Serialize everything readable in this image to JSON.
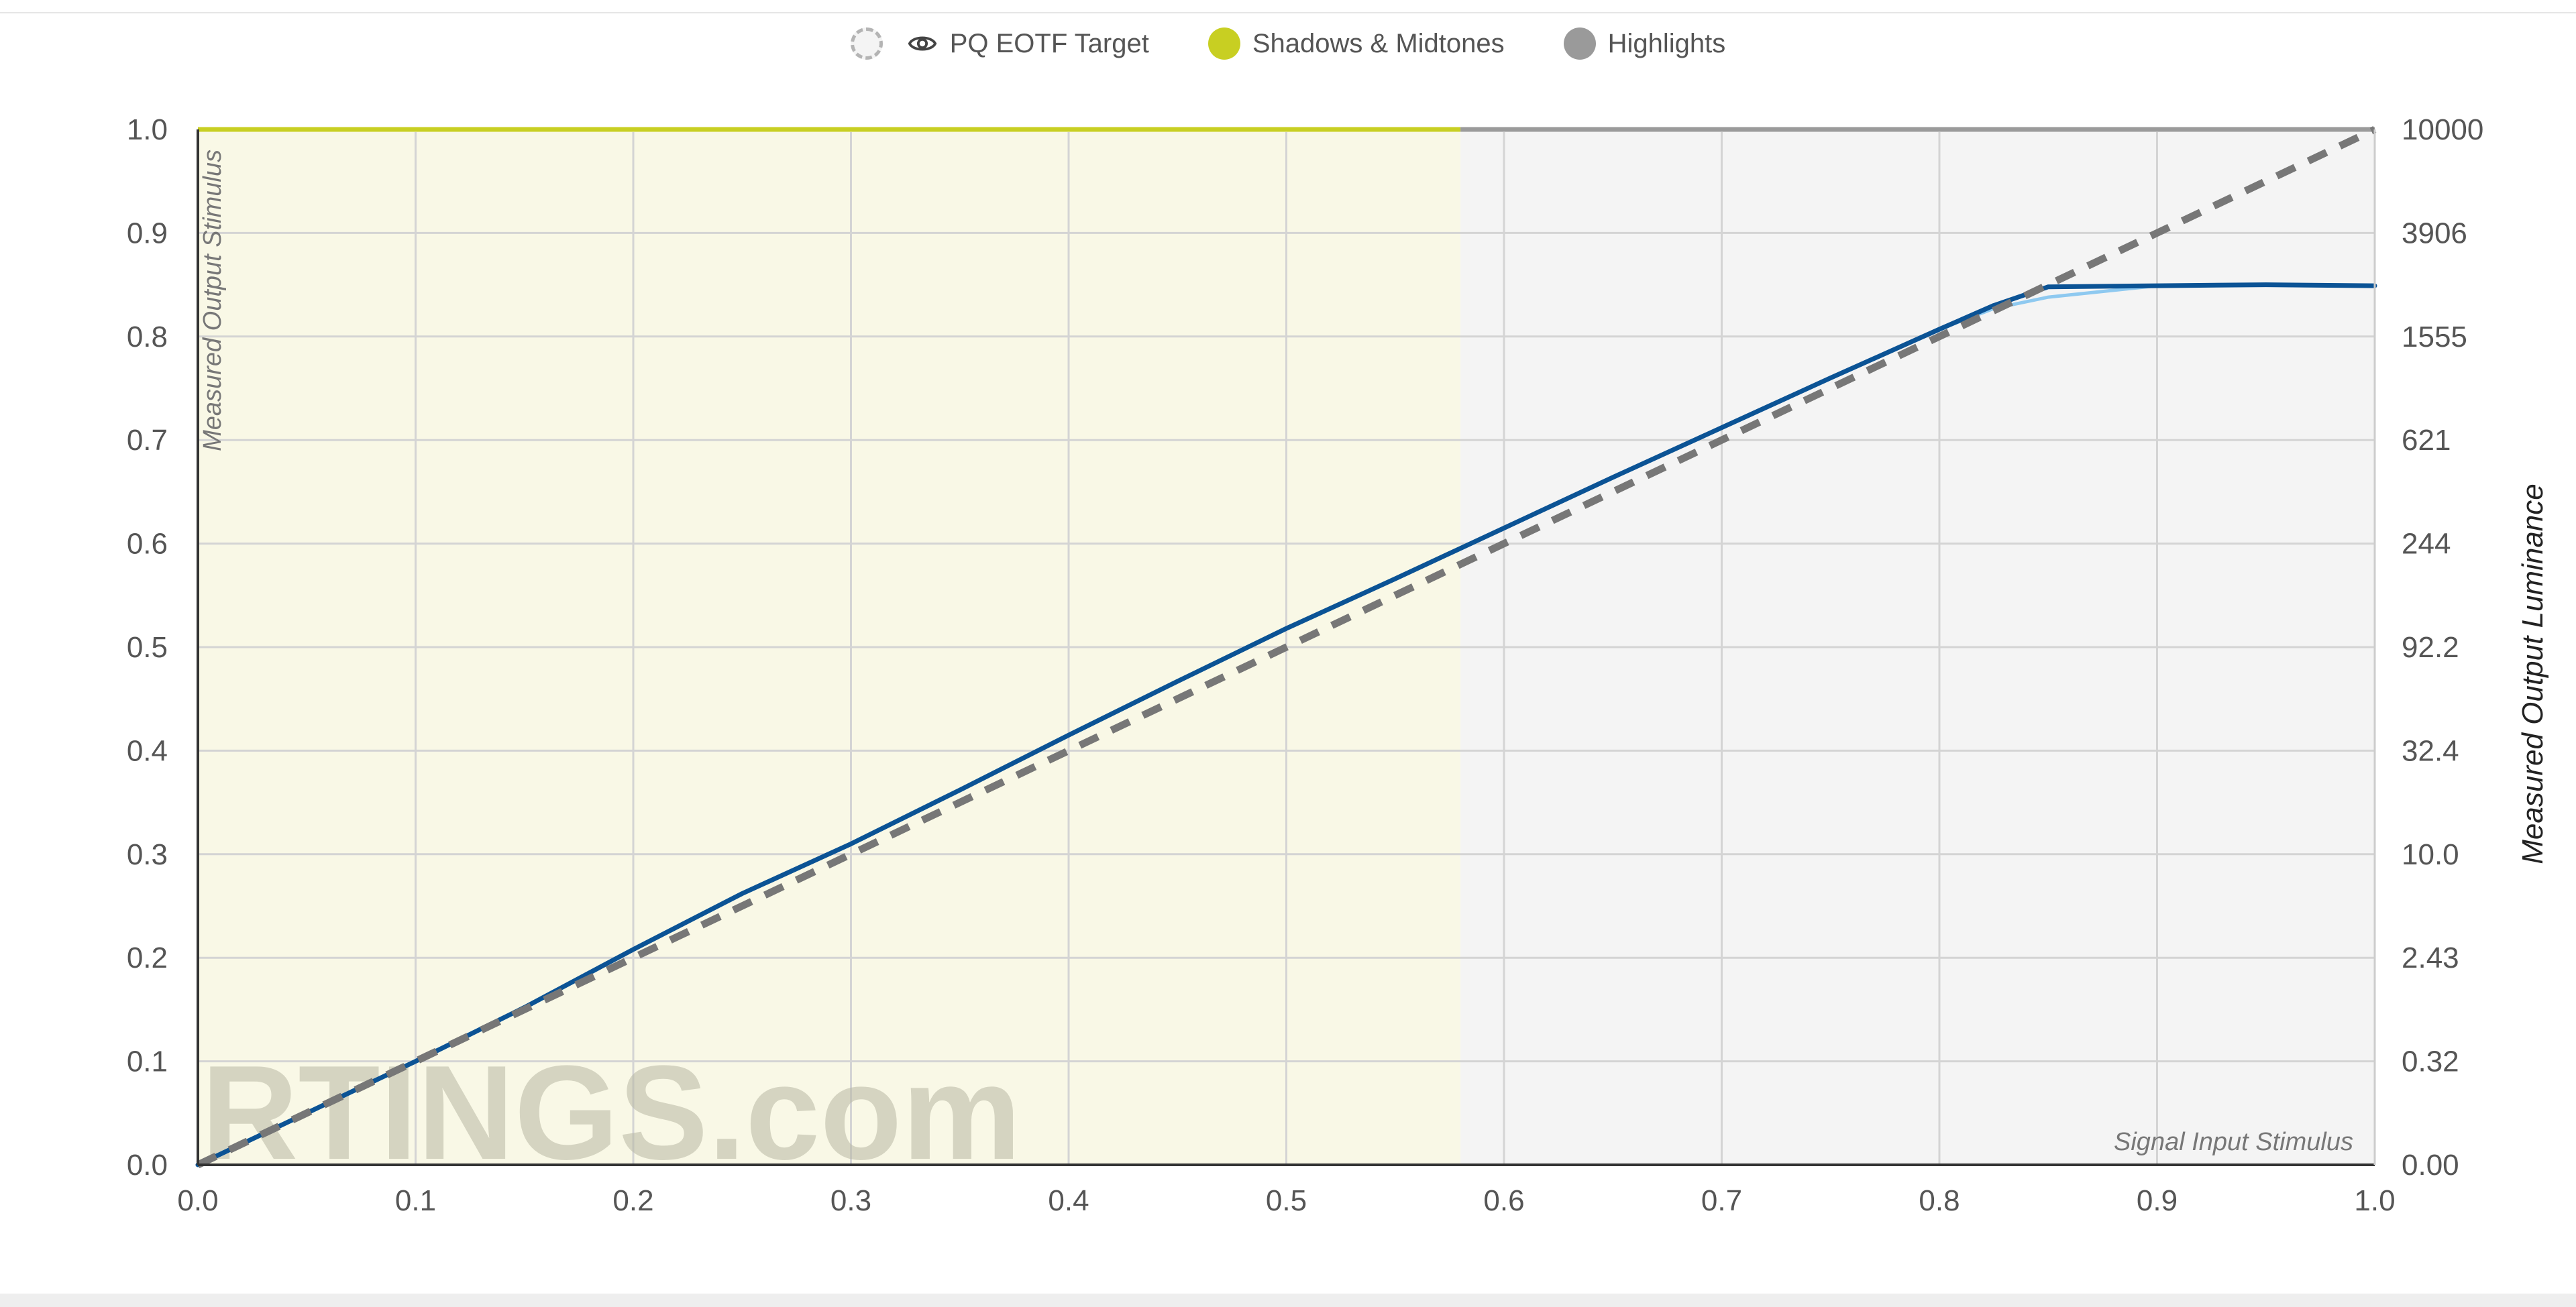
{
  "legend": [
    {
      "label": "PQ EOTF Target",
      "color": "#f4f4f4",
      "style": "dashed",
      "icon": "eye-icon"
    },
    {
      "label": "Shadows & Midtones",
      "color": "#c8cf22"
    },
    {
      "label": "Highlights",
      "color": "#9a9a9a"
    }
  ],
  "watermark": "RTINGS.com",
  "chart_data": {
    "type": "line",
    "xlabel": "Signal Input Stimulus",
    "ylabel": "Measured Output Stimulus",
    "y2label": "Measured Output Luminance",
    "xlim": [
      0,
      1
    ],
    "ylim": [
      0,
      1
    ],
    "x_ticks": [
      "0.0",
      "0.1",
      "0.2",
      "0.3",
      "0.4",
      "0.5",
      "0.6",
      "0.7",
      "0.8",
      "0.9",
      "1.0"
    ],
    "y_ticks": [
      "0.0",
      "0.1",
      "0.2",
      "0.3",
      "0.4",
      "0.5",
      "0.6",
      "0.7",
      "0.8",
      "0.9",
      "1.0"
    ],
    "y2_ticks": [
      "0.00",
      "0.32",
      "2.43",
      "10.0",
      "32.4",
      "92.2",
      "244",
      "621",
      "1555",
      "3906",
      "10000"
    ],
    "grid": true,
    "regions": [
      {
        "name": "Shadows & Midtones",
        "x0": 0,
        "x1": 0.58,
        "color": "#f9f8e6",
        "border": "#c8cf22"
      },
      {
        "name": "Highlights",
        "x0": 0.58,
        "x1": 1.0,
        "color": "#f4f4f4",
        "border": "#9a9a9a"
      }
    ],
    "series": [
      {
        "name": "PQ EOTF Target",
        "style": "dashed",
        "color": "#777777",
        "x": [
          0,
          1
        ],
        "y": [
          0,
          1
        ]
      },
      {
        "style": "solid-light",
        "color": "#8ec9f0",
        "x": [
          0,
          0.05,
          0.1,
          0.15,
          0.2,
          0.25,
          0.3,
          0.35,
          0.4,
          0.45,
          0.5,
          0.55,
          0.6,
          0.65,
          0.7,
          0.75,
          0.8,
          0.825,
          0.85,
          0.9,
          0.95,
          1.0
        ],
        "y": [
          0,
          0.05,
          0.1,
          0.152,
          0.208,
          0.262,
          0.31,
          0.362,
          0.415,
          0.467,
          0.518,
          0.566,
          0.615,
          0.664,
          0.712,
          0.76,
          0.807,
          0.827,
          0.838,
          0.849,
          0.85,
          0.849
        ]
      },
      {
        "style": "solid",
        "color": "#0b5395",
        "x": [
          0,
          0.05,
          0.1,
          0.15,
          0.2,
          0.25,
          0.3,
          0.35,
          0.4,
          0.45,
          0.5,
          0.55,
          0.6,
          0.65,
          0.7,
          0.75,
          0.8,
          0.825,
          0.85,
          0.9,
          0.95,
          1.0
        ],
        "y": [
          0,
          0.05,
          0.1,
          0.152,
          0.208,
          0.262,
          0.31,
          0.362,
          0.415,
          0.467,
          0.518,
          0.566,
          0.615,
          0.664,
          0.712,
          0.76,
          0.807,
          0.83,
          0.848,
          0.849,
          0.85,
          0.849
        ]
      }
    ]
  }
}
